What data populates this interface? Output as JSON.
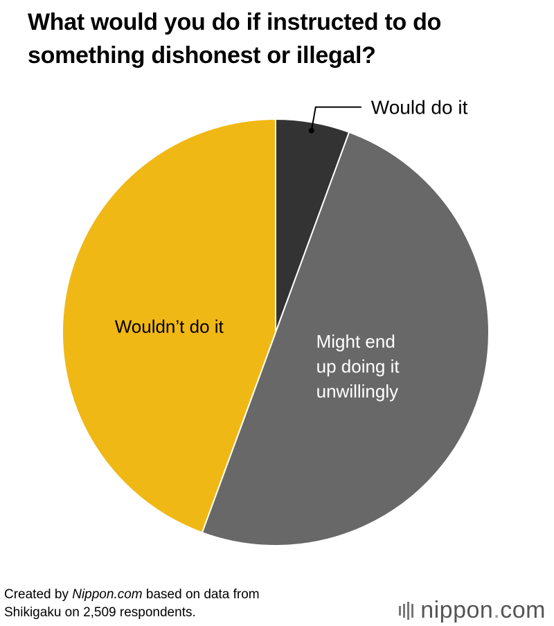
{
  "title": {
    "line1": "What would you do if instructed to do",
    "line2": "something dishonest or illegal?"
  },
  "chart_data": {
    "type": "pie",
    "title": "What would you do if instructed to do something dishonest or illegal?",
    "slices": [
      {
        "label": "Would do it",
        "value": 5.6,
        "color": "#333333"
      },
      {
        "label": "Might end up doing it unwillingly",
        "label_lines": [
          "Might end",
          "up doing it",
          "unwillingly"
        ],
        "value": 50.0,
        "color": "#686868"
      },
      {
        "label": "Wouldn’t do it",
        "value": 44.4,
        "color": "#f0b814"
      }
    ],
    "label_colors": [
      "#000000",
      "#ffffff",
      "#000000"
    ]
  },
  "footer": {
    "line1_prefix": "Created by ",
    "line1_source": "Nippon.com",
    "line1_suffix": " based on data from",
    "line2": "Shikigaku on 2,509 respondents."
  },
  "brand": {
    "name": "nippon",
    "dot": ".",
    "tld": "com"
  }
}
